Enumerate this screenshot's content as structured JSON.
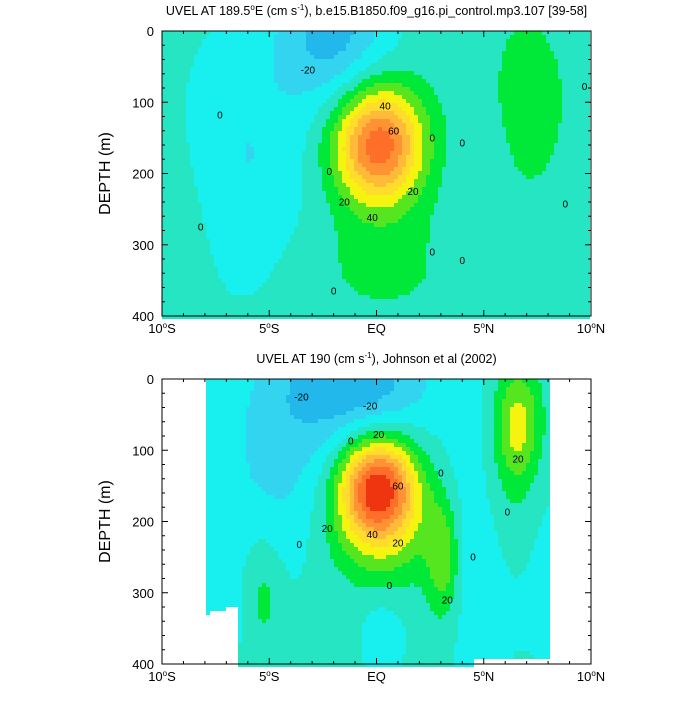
{
  "chart_data": [
    {
      "type": "contour",
      "title": "UVEL AT 189.5°E (cm s⁻¹), b.e15.B1850.f09_g16.pi_control.mp3.107 [39-58]",
      "title_parts": [
        "UVEL AT 189.5",
        "o",
        "E (cm s",
        "-1",
        "), b.e15.B1850.f09_g16.pi_control.mp3.107 [39-58]"
      ],
      "ylabel": "DEPTH (m)",
      "xlim": [
        -10,
        10
      ],
      "ylim": [
        0,
        400
      ],
      "y_reversed": true,
      "x_ticks": [
        {
          "value": -10,
          "label": "10",
          "hemi": "S"
        },
        {
          "value": -5,
          "label": "5",
          "hemi": "S"
        },
        {
          "value": 0,
          "label": "EQ",
          "hemi": ""
        },
        {
          "value": 5,
          "label": "5",
          "hemi": "N"
        },
        {
          "value": 10,
          "label": "10",
          "hemi": "N"
        }
      ],
      "y_ticks": [
        0,
        100,
        200,
        300,
        400
      ],
      "contour_interval": 10,
      "levels": [
        -30,
        -20,
        -10,
        0,
        10,
        20,
        30,
        40,
        50,
        60,
        70
      ],
      "core": {
        "lat": 0,
        "depth": 160,
        "max_speed": 70
      },
      "contour_labels": [
        {
          "text": "-20",
          "lat": -3.2,
          "depth": 55
        },
        {
          "text": "0",
          "lat": -7.3,
          "depth": 118
        },
        {
          "text": "0",
          "lat": -8.2,
          "depth": 275
        },
        {
          "text": "0",
          "lat": -2.2,
          "depth": 197
        },
        {
          "text": "0",
          "lat": -2.0,
          "depth": 365
        },
        {
          "text": "40",
          "lat": 0.4,
          "depth": 105
        },
        {
          "text": "60",
          "lat": 0.8,
          "depth": 140
        },
        {
          "text": "20",
          "lat": -1.5,
          "depth": 240
        },
        {
          "text": "40",
          "lat": -0.2,
          "depth": 262
        },
        {
          "text": "20",
          "lat": 1.7,
          "depth": 225
        },
        {
          "text": "0",
          "lat": 2.6,
          "depth": 150
        },
        {
          "text": "0",
          "lat": 4.0,
          "depth": 157
        },
        {
          "text": "0",
          "lat": 2.6,
          "depth": 310
        },
        {
          "text": "0",
          "lat": 4.0,
          "depth": 322
        },
        {
          "text": "0",
          "lat": 9.7,
          "depth": 78
        },
        {
          "text": "0",
          "lat": 8.8,
          "depth": 243
        }
      ]
    },
    {
      "type": "contour",
      "title": "UVEL AT 190 (cm s⁻¹), Johnson et al (2002)",
      "title_parts": [
        "UVEL AT 190 (cm s",
        "-1",
        "), Johnson et al (2002)"
      ],
      "ylabel": "DEPTH (m)",
      "xlim": [
        -10,
        10
      ],
      "ylim": [
        0,
        400
      ],
      "y_reversed": true,
      "x_ticks": [
        {
          "value": -10,
          "label": "10",
          "hemi": "S"
        },
        {
          "value": -5,
          "label": "5",
          "hemi": "S"
        },
        {
          "value": 0,
          "label": "EQ",
          "hemi": ""
        },
        {
          "value": 5,
          "label": "5",
          "hemi": "N"
        },
        {
          "value": 10,
          "label": "10",
          "hemi": "N"
        }
      ],
      "y_ticks": [
        0,
        100,
        200,
        300,
        400
      ],
      "data_extent_lat": [
        -8,
        8
      ],
      "contour_interval": 10,
      "levels": [
        -30,
        -20,
        -10,
        0,
        10,
        20,
        30,
        40,
        50,
        60,
        70
      ],
      "core": {
        "lat": 0,
        "depth": 150,
        "max_speed": 70
      },
      "contour_labels": [
        {
          "text": "-20",
          "lat": -3.5,
          "depth": 25
        },
        {
          "text": "-20",
          "lat": -0.3,
          "depth": 38
        },
        {
          "text": "0",
          "lat": -1.2,
          "depth": 87
        },
        {
          "text": "20",
          "lat": 0.1,
          "depth": 78
        },
        {
          "text": "60",
          "lat": 1.0,
          "depth": 150
        },
        {
          "text": "20",
          "lat": -2.3,
          "depth": 210
        },
        {
          "text": "40",
          "lat": -0.2,
          "depth": 218
        },
        {
          "text": "20",
          "lat": 1.0,
          "depth": 230
        },
        {
          "text": "0",
          "lat": -3.6,
          "depth": 232
        },
        {
          "text": "0",
          "lat": 0.6,
          "depth": 290
        },
        {
          "text": "20",
          "lat": 3.3,
          "depth": 310
        },
        {
          "text": "0",
          "lat": 3.0,
          "depth": 132
        },
        {
          "text": "20",
          "lat": 6.6,
          "depth": 112
        },
        {
          "text": "0",
          "lat": 6.1,
          "depth": 187
        },
        {
          "text": "0",
          "lat": 4.5,
          "depth": 250
        }
      ]
    }
  ]
}
